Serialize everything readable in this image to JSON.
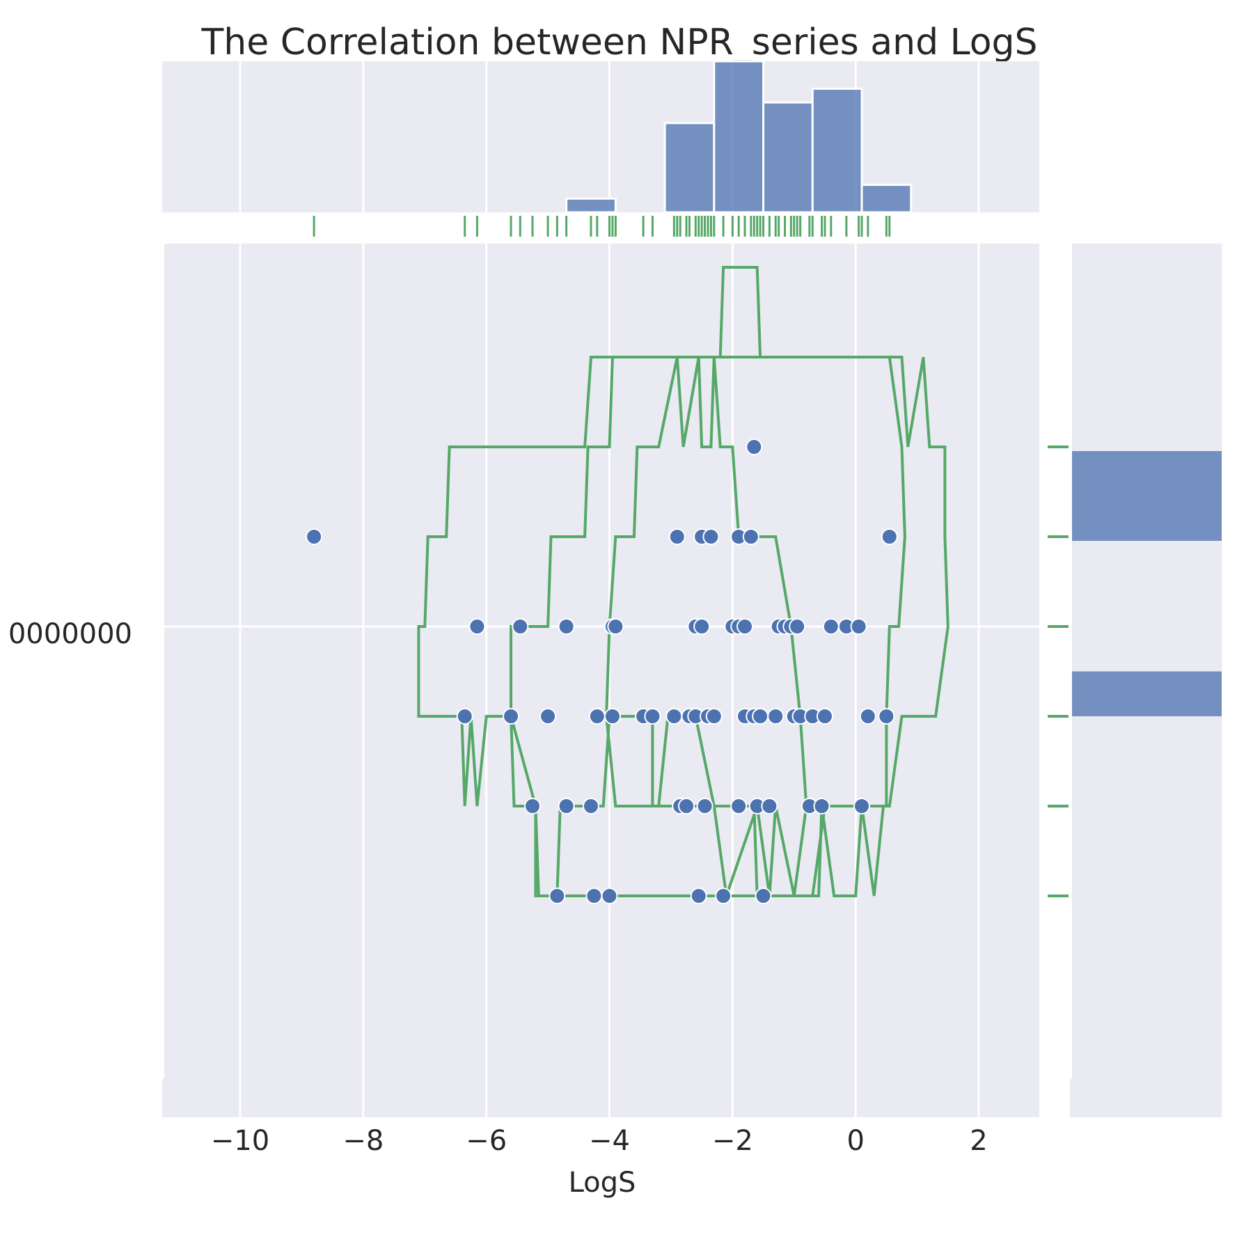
{
  "chart_data": {
    "type": "scatter",
    "title": "The Correlation between NPR_series and LogS",
    "xlabel": "LogS",
    "ylabel": "",
    "xlim": [
      -11.2,
      3.0
    ],
    "ylim": [
      -1.8,
      3.3
    ],
    "x_ticks": [
      -10,
      -8,
      -6,
      -4,
      -2,
      0,
      2
    ],
    "x_tick_labels": [
      "−10",
      "−8",
      "−6",
      "−4",
      "−2",
      "0",
      "2"
    ],
    "y_tick_visible_label": "0000000",
    "grid": true,
    "background": "#eaeaf2",
    "colors": {
      "points": "#4c72b0",
      "hist": "#4c72b0",
      "contour": "#55a868",
      "rug": "#55a868"
    },
    "y_levels": [
      -1,
      0,
      1,
      2,
      3
    ],
    "points": [
      {
        "x": -8.8,
        "y": 1
      },
      {
        "x": -2.9,
        "y": 1
      },
      {
        "x": -2.5,
        "y": 1
      },
      {
        "x": -2.35,
        "y": 1
      },
      {
        "x": -1.9,
        "y": 1
      },
      {
        "x": -1.7,
        "y": 1
      },
      {
        "x": 0.55,
        "y": 1
      },
      {
        "x": -1.65,
        "y": 2
      },
      {
        "x": -6.15,
        "y": 0
      },
      {
        "x": -5.45,
        "y": 0
      },
      {
        "x": -4.7,
        "y": 0
      },
      {
        "x": -3.95,
        "y": 0
      },
      {
        "x": -3.9,
        "y": 0
      },
      {
        "x": -2.6,
        "y": 0
      },
      {
        "x": -2.5,
        "y": 0
      },
      {
        "x": -2.0,
        "y": 0
      },
      {
        "x": -1.9,
        "y": 0
      },
      {
        "x": -1.8,
        "y": 0
      },
      {
        "x": -1.25,
        "y": 0
      },
      {
        "x": -1.15,
        "y": 0
      },
      {
        "x": -1.05,
        "y": 0
      },
      {
        "x": -0.95,
        "y": 0
      },
      {
        "x": -0.4,
        "y": 0
      },
      {
        "x": -0.15,
        "y": 0
      },
      {
        "x": 0.05,
        "y": 0
      },
      {
        "x": -6.35,
        "y": -1
      },
      {
        "x": -5.6,
        "y": -1
      },
      {
        "x": -5.0,
        "y": -1
      },
      {
        "x": -4.2,
        "y": -1
      },
      {
        "x": -3.95,
        "y": -1
      },
      {
        "x": -3.45,
        "y": -1
      },
      {
        "x": -3.3,
        "y": -1
      },
      {
        "x": -2.95,
        "y": -1
      },
      {
        "x": -2.7,
        "y": -1
      },
      {
        "x": -2.6,
        "y": -1
      },
      {
        "x": -2.4,
        "y": -1
      },
      {
        "x": -2.3,
        "y": -1
      },
      {
        "x": -1.8,
        "y": -1
      },
      {
        "x": -1.65,
        "y": -1
      },
      {
        "x": -1.55,
        "y": -1
      },
      {
        "x": -1.3,
        "y": -1
      },
      {
        "x": -1.0,
        "y": -1
      },
      {
        "x": -0.9,
        "y": -1
      },
      {
        "x": -0.7,
        "y": -1
      },
      {
        "x": -0.5,
        "y": -1
      },
      {
        "x": 0.2,
        "y": -1
      },
      {
        "x": 0.5,
        "y": -1
      }
    ],
    "extra_points_lower": [
      {
        "x": -5.25,
        "y": -2
      },
      {
        "x": -4.7,
        "y": -2
      },
      {
        "x": -4.3,
        "y": -2
      },
      {
        "x": -2.85,
        "y": -2
      },
      {
        "x": -2.75,
        "y": -2
      },
      {
        "x": -2.45,
        "y": -2
      },
      {
        "x": -1.9,
        "y": -2
      },
      {
        "x": -1.6,
        "y": -2
      },
      {
        "x": -1.4,
        "y": -2
      },
      {
        "x": -0.75,
        "y": -2
      },
      {
        "x": -0.55,
        "y": -2
      },
      {
        "x": 0.1,
        "y": -2
      },
      {
        "x": -4.85,
        "y": -3
      },
      {
        "x": -4.25,
        "y": -3
      },
      {
        "x": -4.0,
        "y": -3
      },
      {
        "x": -2.55,
        "y": -3
      },
      {
        "x": -2.15,
        "y": -3
      },
      {
        "x": -1.5,
        "y": -3
      }
    ],
    "hist_x": {
      "bins": [
        -5.5,
        -4.7,
        -3.9,
        -3.1,
        -2.3,
        -1.5,
        -0.7,
        0.1,
        0.9
      ],
      "counts": [
        0,
        2,
        0,
        13,
        22,
        16,
        18,
        4
      ]
    },
    "hist_y": [
      {
        "level": 2.5,
        "count": 10
      },
      {
        "level": 1.5,
        "count": 0
      },
      {
        "level": 0.5,
        "count": 0
      },
      {
        "level": -0.5,
        "count": 0
      },
      {
        "level": -1.0,
        "count": 5
      }
    ],
    "rug_x": [
      -8.8,
      -6.35,
      -6.15,
      -5.6,
      -5.45,
      -5.25,
      -5.0,
      -4.85,
      -4.7,
      -4.3,
      -4.2,
      -4.0,
      -3.95,
      -3.9,
      -3.45,
      -3.3,
      -2.95,
      -2.9,
      -2.85,
      -2.75,
      -2.7,
      -2.6,
      -2.55,
      -2.5,
      -2.45,
      -2.4,
      -2.35,
      -2.3,
      -2.15,
      -2.0,
      -1.9,
      -1.8,
      -1.7,
      -1.65,
      -1.6,
      -1.55,
      -1.5,
      -1.4,
      -1.3,
      -1.25,
      -1.15,
      -1.05,
      -1.0,
      -0.95,
      -0.9,
      -0.75,
      -0.7,
      -0.55,
      -0.5,
      -0.4,
      -0.15,
      0.05,
      0.1,
      0.2,
      0.5,
      0.55
    ],
    "rug_y": [
      2,
      1,
      0,
      -1,
      -2,
      -3
    ]
  }
}
